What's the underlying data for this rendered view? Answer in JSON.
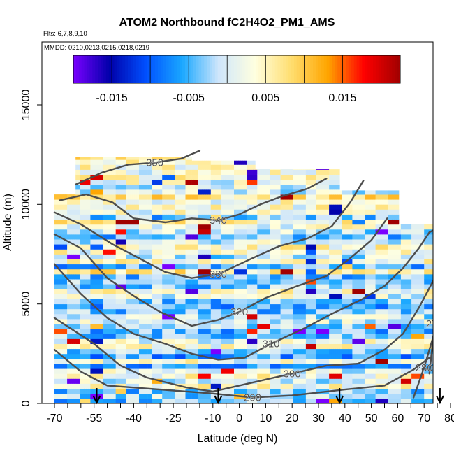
{
  "chart_data": {
    "type": "heatmap",
    "title": "ATOM2 Northbound fC2H4O2_PM1_AMS",
    "flights_text": "Flts: 6,7,8,9,10",
    "dates_text": "MMDD: 0210,0213,0215,0218,0219",
    "xlabel": "Latitude (deg N)",
    "ylabel": "Altitude (m)",
    "xlim": [
      -70,
      85
    ],
    "ylim": [
      0,
      17500
    ],
    "x_tick_labels": [
      "-70",
      "-55",
      "-40",
      "-25",
      "-10",
      "0",
      "10",
      "20",
      "30",
      "40",
      "50",
      "60",
      "70",
      "80"
    ],
    "x_tick_values": [
      -70,
      -55,
      -40,
      -25,
      -10,
      0,
      10,
      20,
      30,
      40,
      50,
      60,
      70,
      80
    ],
    "x_minor_ticks": [
      -65,
      -60,
      -50,
      -45,
      -35,
      -30,
      -20,
      -15,
      -5,
      5,
      15,
      25,
      35,
      45,
      55,
      65,
      75,
      85
    ],
    "y_tick_labels": [
      "0",
      "5000",
      "10000",
      "15000"
    ],
    "y_tick_values": [
      0,
      5000,
      10000,
      15000
    ],
    "colorbar": {
      "range": [
        -0.02,
        0.0225
      ],
      "tick_labels": [
        "-0.015",
        "-0.005",
        "0.005",
        "0.015"
      ],
      "tick_values": [
        -0.015,
        -0.005,
        0.005,
        0.015
      ],
      "colors": [
        "#7a00ff",
        "#0000aa",
        "#0050ff",
        "#1aa8ff",
        "#cfe6fb",
        "#ffffe0",
        "#ffde70",
        "#ffa500",
        "#ff0000",
        "#a00000"
      ]
    },
    "contours": [
      {
        "label": "270",
        "points": [
          [
            80,
            9000
          ],
          [
            77,
            6500
          ],
          [
            74,
            4000
          ],
          [
            72,
            1500
          ]
        ]
      },
      {
        "label": "280",
        "points": [
          [
            80,
            6700
          ],
          [
            76,
            4500
          ],
          [
            70,
            1800
          ],
          [
            66,
            300
          ]
        ]
      },
      {
        "label": "290",
        "points": [
          [
            -70,
            2700
          ],
          [
            -60,
            1600
          ],
          [
            -50,
            900
          ],
          [
            -30,
            700
          ],
          [
            -10,
            500
          ],
          [
            5,
            300
          ],
          [
            20,
            400
          ],
          [
            40,
            700
          ],
          [
            55,
            900
          ],
          [
            66,
            1700
          ],
          [
            72,
            2300
          ]
        ]
      },
      {
        "label": "300",
        "points": [
          [
            -70,
            4300
          ],
          [
            -55,
            3000
          ],
          [
            -45,
            1900
          ],
          [
            -35,
            1300
          ],
          [
            -20,
            800
          ],
          [
            -10,
            600
          ],
          [
            0,
            900
          ],
          [
            10,
            1200
          ],
          [
            20,
            1500
          ],
          [
            33,
            1900
          ],
          [
            45,
            2000
          ],
          [
            55,
            2700
          ],
          [
            62,
            3500
          ],
          [
            68,
            4800
          ],
          [
            74,
            6300
          ],
          [
            80,
            7800
          ]
        ]
      },
      {
        "label": "310",
        "points": [
          [
            -70,
            7000
          ],
          [
            -60,
            5500
          ],
          [
            -50,
            4300
          ],
          [
            -40,
            3500
          ],
          [
            -28,
            3000
          ],
          [
            -18,
            2500
          ],
          [
            -8,
            2200
          ],
          [
            2,
            2300
          ],
          [
            12,
            3000
          ],
          [
            25,
            3800
          ],
          [
            35,
            4500
          ],
          [
            46,
            5200
          ],
          [
            55,
            5900
          ],
          [
            62,
            6800
          ],
          [
            68,
            7800
          ],
          [
            72,
            8600
          ],
          [
            78,
            9000
          ]
        ]
      },
      {
        "label": "320",
        "points": [
          [
            -70,
            8500
          ],
          [
            -60,
            7800
          ],
          [
            -50,
            6300
          ],
          [
            -40,
            5400
          ],
          [
            -30,
            4600
          ],
          [
            -18,
            3900
          ],
          [
            -8,
            4200
          ],
          [
            0,
            4600
          ],
          [
            10,
            5300
          ],
          [
            22,
            5900
          ],
          [
            33,
            6400
          ],
          [
            42,
            7300
          ],
          [
            50,
            8200
          ],
          [
            56,
            9300
          ]
        ]
      },
      {
        "label": "330",
        "points": [
          [
            -70,
            9600
          ],
          [
            -60,
            9000
          ],
          [
            -48,
            8000
          ],
          [
            -38,
            7300
          ],
          [
            -28,
            6600
          ],
          [
            -18,
            6300
          ],
          [
            -8,
            6500
          ],
          [
            5,
            7300
          ],
          [
            15,
            7900
          ],
          [
            26,
            8300
          ],
          [
            35,
            8900
          ],
          [
            42,
            10100
          ],
          [
            47,
            11200
          ]
        ]
      },
      {
        "label": "340",
        "points": [
          [
            -68,
            10200
          ],
          [
            -58,
            10500
          ],
          [
            -48,
            10100
          ],
          [
            -40,
            9300
          ],
          [
            -28,
            9100
          ],
          [
            -18,
            9300
          ],
          [
            -8,
            9200
          ],
          [
            0,
            9500
          ],
          [
            8,
            10000
          ],
          [
            16,
            10400
          ],
          [
            26,
            10800
          ],
          [
            33,
            11300
          ]
        ]
      },
      {
        "label": "350",
        "points": [
          [
            -62,
            11000
          ],
          [
            -52,
            11600
          ],
          [
            -42,
            12000
          ],
          [
            -32,
            12100
          ],
          [
            -22,
            12300
          ],
          [
            -15,
            12700
          ]
        ]
      }
    ],
    "flight_arrows": [
      -54,
      -8,
      38,
      76
    ]
  }
}
